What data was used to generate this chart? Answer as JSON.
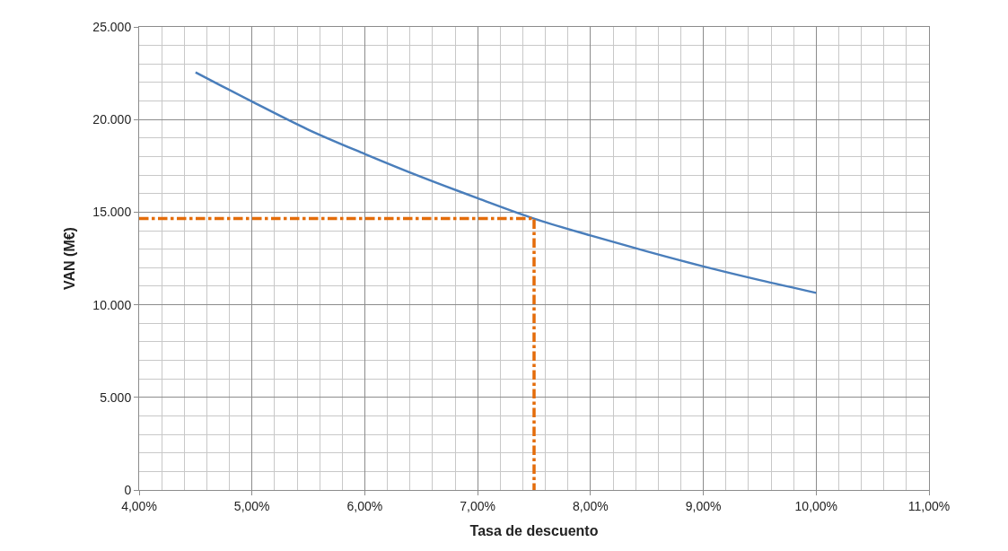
{
  "chart_data": {
    "type": "line",
    "xlabel": "Tasa de descuento",
    "ylabel": "VAN (M€)",
    "series": [
      {
        "color": "#4a7ebb",
        "x": [
          4.5,
          5.0,
          5.5,
          6.0,
          6.5,
          7.0,
          7.5,
          8.0,
          8.5,
          9.0,
          9.5,
          10.0
        ],
        "values": [
          22550,
          20970,
          19450,
          18140,
          16900,
          15750,
          14650,
          13740,
          12880,
          12070,
          11330,
          10640
        ]
      },
      {
        "color": "#e46c0a",
        "line_style": "dashed",
        "x": [
          4.0,
          7.5,
          7.5
        ],
        "values": [
          14650,
          14650,
          0
        ]
      }
    ],
    "xlim": [
      4,
      11
    ],
    "xticks": [
      {
        "value": 4,
        "label": "4,00%"
      },
      {
        "value": 5,
        "label": "5,00%"
      },
      {
        "value": 6,
        "label": "6,00%"
      },
      {
        "value": 7,
        "label": "7,00%"
      },
      {
        "value": 8,
        "label": "8,00%"
      },
      {
        "value": 9,
        "label": "9,00%"
      },
      {
        "value": 10,
        "label": "10,00%"
      },
      {
        "value": 11,
        "label": "11,00%"
      }
    ],
    "ylim": [
      0,
      25000
    ],
    "yticks": [
      0,
      {
        "value": 5000,
        "label": "5.000"
      },
      {
        "value": 10000,
        "label": "10.000"
      },
      {
        "value": 15000,
        "label": "15.000"
      },
      {
        "value": 20000,
        "label": "20.000"
      },
      {
        "value": 25000,
        "label": "25.000"
      }
    ],
    "grid": true,
    "legend": false,
    "marker": "none"
  }
}
